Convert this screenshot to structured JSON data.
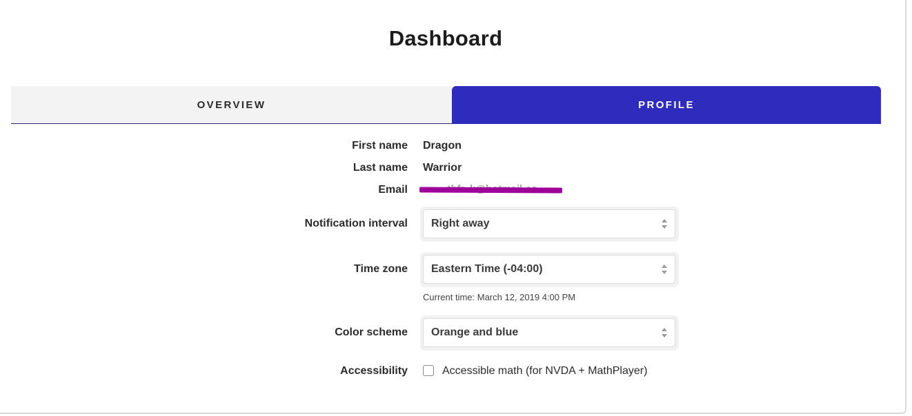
{
  "header": {
    "title": "Dashboard"
  },
  "tabs": [
    {
      "label": "OVERVIEW",
      "active": false
    },
    {
      "label": "PROFILE",
      "active": true
    }
  ],
  "profile": {
    "first_name_label": "First name",
    "first_name_value": "Dragon",
    "last_name_label": "Last name",
    "last_name_value": "Warrior",
    "email_label": "Email",
    "email_value": "...thfr..k@hotmail.co...",
    "notification_label": "Notification interval",
    "notification_value": "Right away",
    "timezone_label": "Time zone",
    "timezone_value": "Eastern Time (-04:00)",
    "current_time_text": "Current time: March 12, 2019 4:00 PM",
    "color_scheme_label": "Color scheme",
    "color_scheme_value": "Orange and blue",
    "accessibility_label": "Accessibility",
    "accessible_math_label": "Accessible math (for NVDA + MathPlayer)",
    "accessible_math_checked": false
  },
  "colors": {
    "active_tab": "#2f2bbd",
    "inactive_tab": "#f3f3f3",
    "redaction": "#a0009a"
  },
  "icons": {
    "select_arrows": "up-down-arrows-icon",
    "checkbox": "checkbox-unchecked-icon"
  }
}
